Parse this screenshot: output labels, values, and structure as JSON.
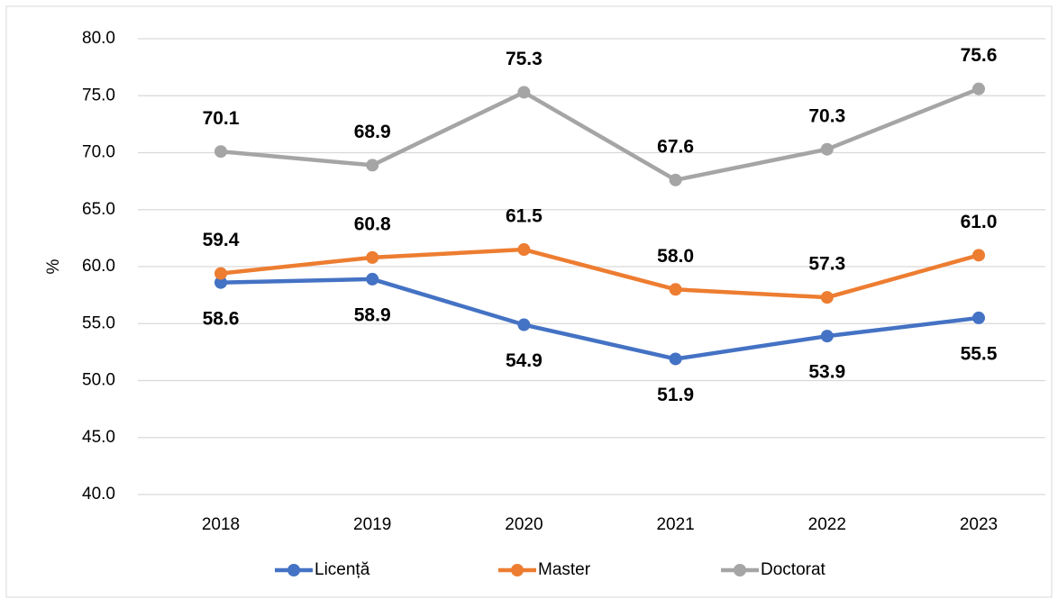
{
  "chart_data": {
    "type": "line",
    "y_label": "%",
    "categories": [
      "2018",
      "2019",
      "2020",
      "2021",
      "2022",
      "2023"
    ],
    "series": [
      {
        "name": "Licență",
        "color": "#4472c4",
        "values": [
          58.6,
          58.9,
          54.9,
          51.9,
          53.9,
          55.5
        ],
        "value_labels": [
          "58.6",
          "58.9",
          "54.9",
          "51.9",
          "53.9",
          "55.5"
        ]
      },
      {
        "name": "Master",
        "color": "#ed7d31",
        "values": [
          59.4,
          60.8,
          61.5,
          58,
          57.3,
          61
        ],
        "value_labels": [
          "59.4",
          "60.8",
          "61.5",
          "58.0",
          "57.3",
          "61.0"
        ]
      },
      {
        "name": "Doctorat",
        "color": "#a5a5a5",
        "values": [
          70.1,
          68.9,
          75.3,
          67.6,
          70.3,
          75.6
        ],
        "value_labels": [
          "70.1",
          "68.9",
          "75.3",
          "67.6",
          "70.3",
          "75.6"
        ]
      }
    ],
    "ylim": [
      40,
      80
    ],
    "yticks": [
      {
        "value": 40,
        "label": "40.0"
      },
      {
        "value": 45,
        "label": "45.0"
      },
      {
        "value": 50,
        "label": "50.0"
      },
      {
        "value": 55,
        "label": "55.0"
      },
      {
        "value": 60,
        "label": "60.0"
      },
      {
        "value": 65,
        "label": "65.0"
      },
      {
        "value": 70,
        "label": "70.0"
      },
      {
        "value": 75,
        "label": "75.0"
      },
      {
        "value": 80,
        "label": "80.0"
      }
    ],
    "grid": true,
    "legend": "bottom"
  }
}
